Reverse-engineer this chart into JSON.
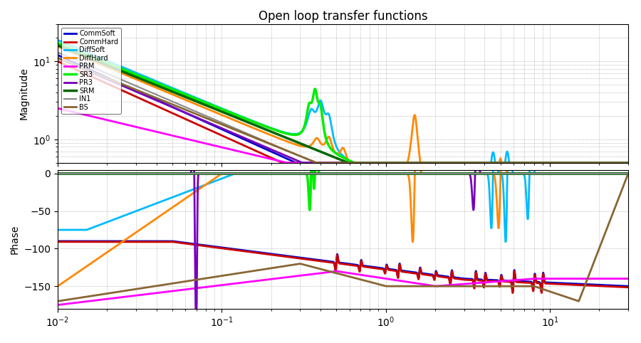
{
  "title": "Open loop transfer functions",
  "ylabel_mag": "Magnitude",
  "ylabel_phase": "Phase",
  "xlim": [
    0.01,
    30
  ],
  "mag_ylim": [
    0.5,
    30
  ],
  "phase_ylim": [
    -180,
    5
  ],
  "phase_yticks": [
    0,
    -50,
    -100,
    -150
  ],
  "legend_entries": [
    "CommSoft",
    "CommHard",
    "DiffSoft",
    "DiffHard",
    "PRM",
    "SR3",
    "PR3",
    "SRM",
    "IN1",
    "BS"
  ],
  "colors": {
    "CommSoft": "#0000CC",
    "CommHard": "#CC0000",
    "DiffSoft": "#00BBFF",
    "DiffHard": "#FF8800",
    "PRM": "#FF00FF",
    "SR3": "#00EE00",
    "PR3": "#7700BB",
    "SRM": "#006600",
    "IN1": "#888888",
    "BS": "#886633"
  },
  "linewidths": {
    "CommSoft": 2.0,
    "CommHard": 2.0,
    "DiffSoft": 2.0,
    "DiffHard": 2.0,
    "PRM": 2.0,
    "SR3": 2.5,
    "PR3": 2.0,
    "SRM": 2.5,
    "IN1": 1.5,
    "BS": 2.0
  }
}
